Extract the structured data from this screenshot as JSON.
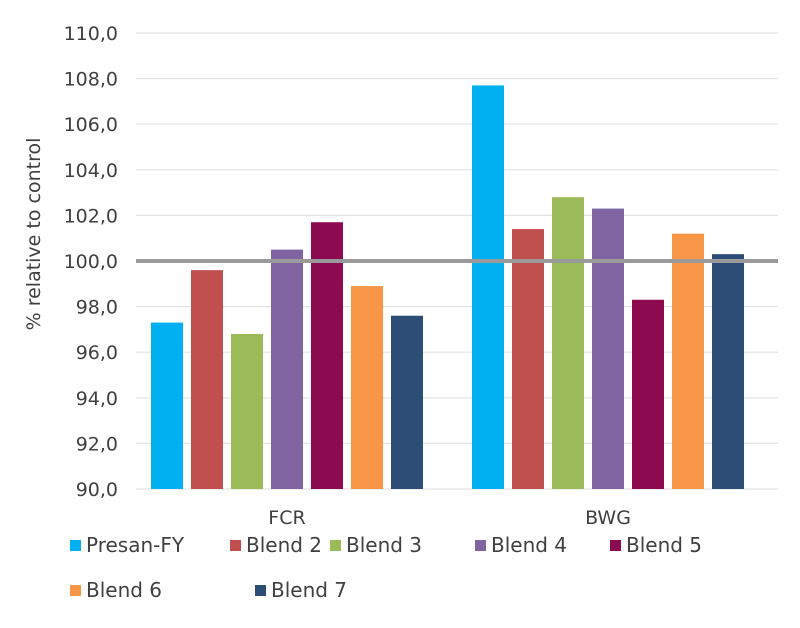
{
  "chart_data": {
    "type": "bar",
    "title": "",
    "xlabel": "",
    "ylabel": "% relative to control",
    "ylim": [
      90,
      110
    ],
    "yticks": [
      "90,0",
      "92,0",
      "94,0",
      "96,0",
      "98,0",
      "100,0",
      "102,0",
      "104,0",
      "106,0",
      "108,0",
      "110,0"
    ],
    "ytick_values": [
      90,
      92,
      94,
      96,
      98,
      100,
      102,
      104,
      106,
      108,
      110
    ],
    "grid": true,
    "reference_line": 100,
    "legend_position": "bottom",
    "categories": [
      "FCR",
      "BWG"
    ],
    "series": [
      {
        "name": "Presan-FY",
        "color": "#00B0F0",
        "values": [
          97.3,
          107.7
        ]
      },
      {
        "name": "Blend 2",
        "color": "#C0504D",
        "values": [
          99.6,
          101.4
        ]
      },
      {
        "name": "Blend 3",
        "color": "#9BBB59",
        "values": [
          96.8,
          102.8
        ]
      },
      {
        "name": "Blend 4",
        "color": "#8064A2",
        "values": [
          100.5,
          102.3
        ]
      },
      {
        "name": "Blend 5",
        "color": "#8B0A50",
        "values": [
          101.7,
          98.3
        ]
      },
      {
        "name": "Blend 6",
        "color": "#F79646",
        "values": [
          98.9,
          101.2
        ]
      },
      {
        "name": "Blend 7",
        "color": "#2C4D75",
        "values": [
          97.6,
          100.3
        ]
      }
    ]
  }
}
